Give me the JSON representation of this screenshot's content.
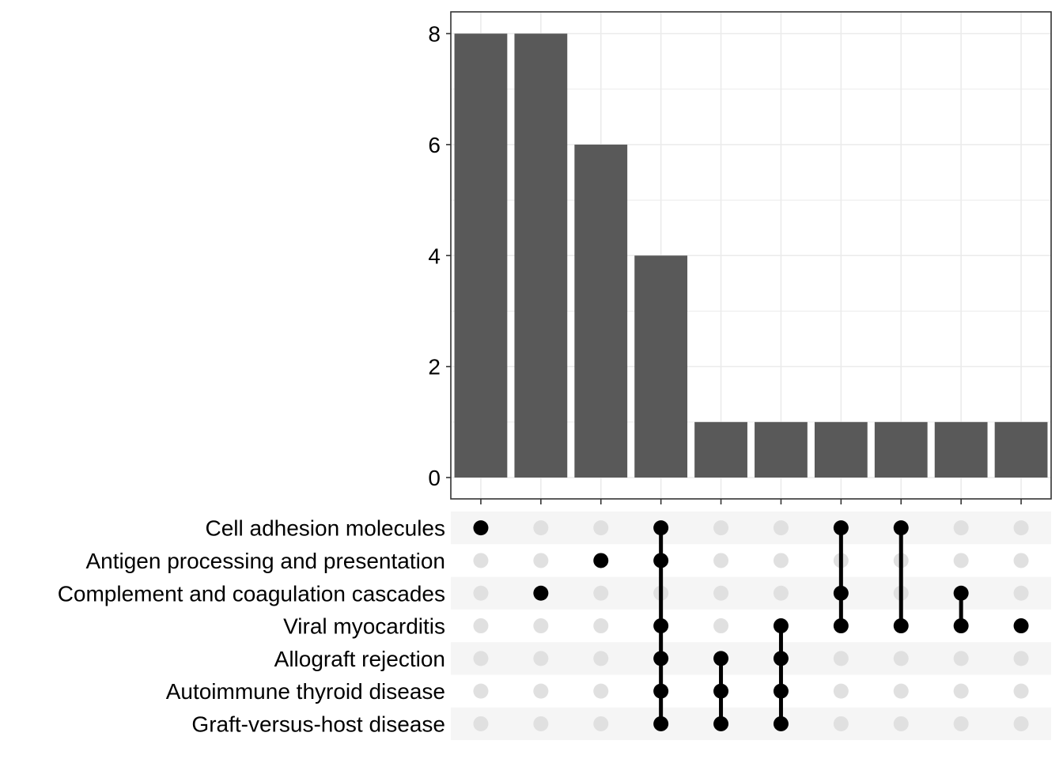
{
  "chart_data": {
    "type": "upset",
    "sets": [
      "Cell adhesion molecules",
      "Antigen processing and presentation",
      "Complement and coagulation cascades",
      "Viral myocarditis",
      "Allograft rejection",
      "Autoimmune thyroid disease",
      "Graft-versus-host disease"
    ],
    "intersections": [
      {
        "sets": [
          "Cell adhesion molecules"
        ],
        "value": 8
      },
      {
        "sets": [
          "Complement and coagulation cascades"
        ],
        "value": 8
      },
      {
        "sets": [
          "Antigen processing and presentation"
        ],
        "value": 6
      },
      {
        "sets": [
          "Cell adhesion molecules",
          "Antigen processing and presentation",
          "Viral myocarditis",
          "Allograft rejection",
          "Autoimmune thyroid disease",
          "Graft-versus-host disease"
        ],
        "value": 4
      },
      {
        "sets": [
          "Allograft rejection",
          "Autoimmune thyroid disease",
          "Graft-versus-host disease"
        ],
        "value": 1
      },
      {
        "sets": [
          "Viral myocarditis",
          "Allograft rejection",
          "Autoimmune thyroid disease",
          "Graft-versus-host disease"
        ],
        "value": 1
      },
      {
        "sets": [
          "Cell adhesion molecules",
          "Complement and coagulation cascades",
          "Viral myocarditis"
        ],
        "value": 1
      },
      {
        "sets": [
          "Cell adhesion molecules",
          "Viral myocarditis"
        ],
        "value": 1
      },
      {
        "sets": [
          "Complement and coagulation cascades",
          "Viral myocarditis"
        ],
        "value": 1
      },
      {
        "sets": [
          "Viral myocarditis"
        ],
        "value": 1
      }
    ],
    "y_ticks": [
      0,
      2,
      4,
      6,
      8
    ],
    "ylim": [
      0,
      8.4
    ],
    "grid": true,
    "colors": {
      "bar": "#595959",
      "dot_active": "#000000",
      "dot_inactive": "#e0e0e0",
      "stripe": "#f5f5f5",
      "grid": "#ebebeb",
      "border": "#333333"
    }
  }
}
